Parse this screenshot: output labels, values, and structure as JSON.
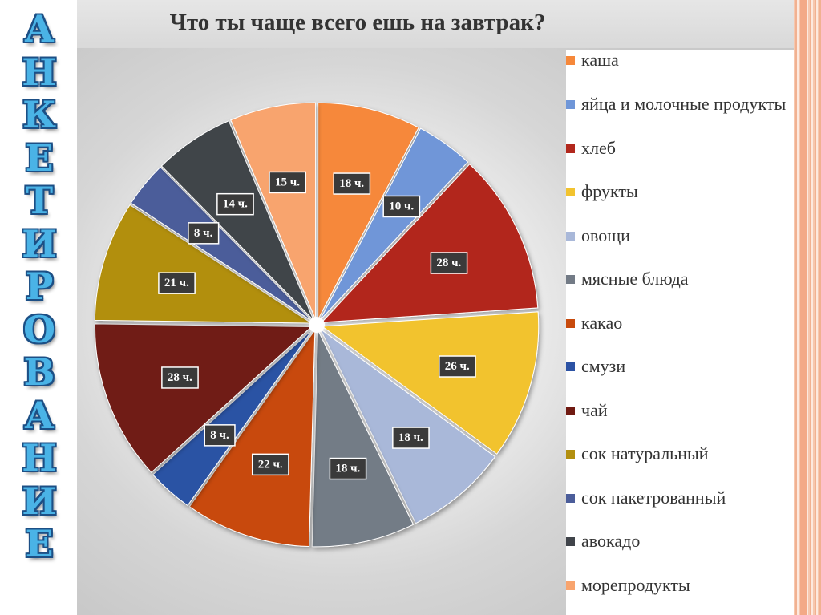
{
  "side_title": [
    "А",
    "Н",
    "К",
    "Е",
    "Т",
    "И",
    "Р",
    "О",
    "В",
    "А",
    "Н",
    "И",
    "Е"
  ],
  "chart_data": {
    "type": "pie",
    "title": "Что ты чаще всего ешь на завтрак?",
    "legend_position": "right",
    "exploded": true,
    "slices": [
      {
        "name": "каша",
        "value": 18,
        "label": "18 ч.",
        "color": "#f6883a"
      },
      {
        "name": "яйца и молочные продукты",
        "value": 10,
        "label": "10 ч.",
        "color": "#6f96d8"
      },
      {
        "name": "хлеб",
        "value": 28,
        "label": "28  ч.",
        "color": "#b2281d"
      },
      {
        "name": "фрукты",
        "value": 26,
        "label": "26 ч.",
        "color": "#f2c32f"
      },
      {
        "name": "овощи",
        "value": 18,
        "label": "18 ч.",
        "color": "#a9b8d9"
      },
      {
        "name": "мясные блюда",
        "value": 18,
        "label": "18 ч.",
        "color": "#737b86"
      },
      {
        "name": "какао",
        "value": 22,
        "label": "22 ч.",
        "color": "#c84a0c"
      },
      {
        "name": "смузи",
        "value": 8,
        "label": "8 ч.",
        "color": "#2c52a4"
      },
      {
        "name": "чай",
        "value": 28,
        "label": "28 ч.",
        "color": "#701a12"
      },
      {
        "name": "сок натуральный",
        "value": 21,
        "label": "21 ч.",
        "color": "#b28f0f"
      },
      {
        "name": "сок пакетрованный",
        "value": 8,
        "label": "8 ч.",
        "color": "#4b5d9a"
      },
      {
        "name": "авокадо",
        "value": 14,
        "label": "14 ч.",
        "color": "#40444a"
      },
      {
        "name": "морепродукты",
        "value": 15,
        "label": "15 ч.",
        "color": "#f8a46e"
      }
    ]
  }
}
